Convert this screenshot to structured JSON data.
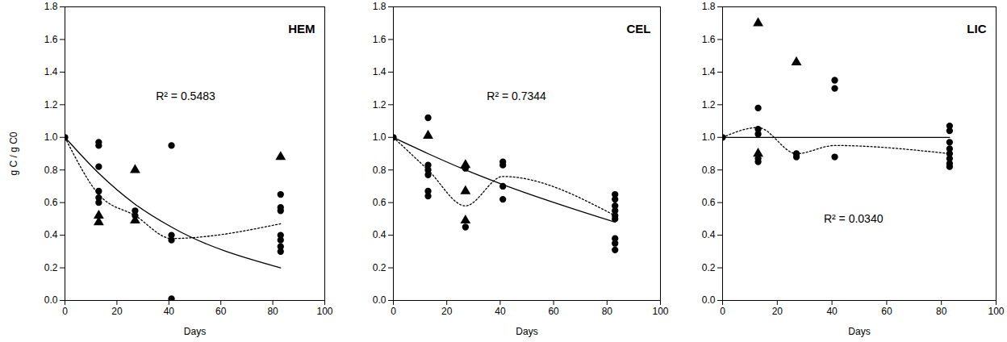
{
  "chart_data": [
    {
      "type": "scatter",
      "title": "HEM",
      "xlabel": "Days",
      "ylabel": "g C / g C0",
      "color": "#000000",
      "xlim": [
        0,
        100
      ],
      "ylim": [
        0,
        1.8
      ],
      "xticks": [
        0,
        20,
        40,
        60,
        80,
        100
      ],
      "yticks": [
        {
          "value": 0,
          "label": "0.0"
        },
        0.2,
        0.4,
        0.6,
        0.8,
        {
          "value": 1,
          "label": "1.0"
        },
        1.2,
        1.4,
        1.6,
        1.8
      ],
      "annotations": [
        {
          "text": "R² = 0.5483",
          "x": 35,
          "y": 1.25
        }
      ],
      "series": [
        {
          "type": "scatter",
          "marker": "circle",
          "x": [
            0,
            13,
            13,
            13,
            13,
            13,
            13,
            27,
            27,
            41,
            41,
            41,
            41,
            83,
            83,
            83,
            83,
            83,
            83,
            83
          ],
          "values": [
            1.0,
            0.97,
            0.95,
            0.82,
            0.67,
            0.63,
            0.6,
            0.55,
            0.52,
            0.95,
            0.4,
            0.37,
            0.01,
            0.65,
            0.57,
            0.55,
            0.4,
            0.37,
            0.33,
            0.3
          ]
        },
        {
          "type": "scatter",
          "marker": "triangle",
          "x": [
            13,
            13,
            27,
            27,
            83
          ],
          "values": [
            0.52,
            0.48,
            0.8,
            0.49,
            0.88
          ]
        },
        {
          "type": "line",
          "line_style": "solid",
          "x": [
            0,
            13,
            27,
            41,
            83
          ],
          "values": [
            1.0,
            0.78,
            0.59,
            0.45,
            0.2
          ]
        },
        {
          "type": "line",
          "line_style": "dotted",
          "x": [
            0,
            13,
            27,
            41,
            83
          ],
          "values": [
            1.0,
            0.65,
            0.52,
            0.38,
            0.47
          ]
        }
      ]
    },
    {
      "type": "scatter",
      "title": "CEL",
      "xlabel": "Days",
      "color": "#000000",
      "xlim": [
        0,
        100
      ],
      "ylim": [
        0,
        1.8
      ],
      "xticks": [
        0,
        20,
        40,
        60,
        80,
        100
      ],
      "yticks": [
        {
          "value": 0,
          "label": "0.0"
        },
        0.2,
        0.4,
        0.6,
        0.8,
        {
          "value": 1,
          "label": "1.0"
        },
        1.2,
        1.4,
        1.6,
        1.8
      ],
      "annotations": [
        {
          "text": "R² = 0.7344",
          "x": 35,
          "y": 1.25
        }
      ],
      "series": [
        {
          "type": "scatter",
          "marker": "circle",
          "x": [
            0,
            13,
            13,
            13,
            13,
            13,
            13,
            27,
            27,
            41,
            41,
            41,
            41,
            83,
            83,
            83,
            83,
            83,
            83,
            83,
            83,
            83
          ],
          "values": [
            1.0,
            1.12,
            0.83,
            0.8,
            0.77,
            0.67,
            0.64,
            0.81,
            0.45,
            0.85,
            0.83,
            0.7,
            0.62,
            0.65,
            0.62,
            0.58,
            0.55,
            0.52,
            0.5,
            0.38,
            0.35,
            0.31
          ]
        },
        {
          "type": "scatter",
          "marker": "triangle",
          "x": [
            13,
            27,
            27,
            27
          ],
          "values": [
            1.01,
            0.83,
            0.67,
            0.49
          ]
        },
        {
          "type": "line",
          "line_style": "solid",
          "x": [
            0,
            13,
            27,
            41,
            83
          ],
          "values": [
            1.0,
            0.9,
            0.8,
            0.71,
            0.48
          ]
        },
        {
          "type": "line",
          "line_style": "dotted",
          "x": [
            0,
            13,
            27,
            41,
            83
          ],
          "values": [
            1.0,
            0.8,
            0.58,
            0.76,
            0.52
          ]
        }
      ]
    },
    {
      "type": "scatter",
      "title": "LIC",
      "xlabel": "Days",
      "color": "#000000",
      "xlim": [
        0,
        100
      ],
      "ylim": [
        0,
        1.8
      ],
      "xticks": [
        0,
        20,
        40,
        60,
        80,
        100
      ],
      "yticks": [
        {
          "value": 0,
          "label": "0.0"
        },
        0.2,
        0.4,
        0.6,
        0.8,
        {
          "value": 1,
          "label": "1.0"
        },
        1.2,
        1.4,
        1.6,
        1.8
      ],
      "annotations": [
        {
          "text": "R² = 0.0340",
          "x": 37,
          "y": 0.5
        }
      ],
      "series": [
        {
          "type": "scatter",
          "marker": "circle",
          "x": [
            0,
            13,
            13,
            13,
            13,
            13,
            27,
            27,
            41,
            41,
            41,
            83,
            83,
            83,
            83,
            83,
            83,
            83,
            83
          ],
          "values": [
            1.0,
            1.18,
            1.05,
            1.02,
            0.87,
            0.85,
            0.9,
            0.88,
            1.35,
            1.3,
            0.88,
            1.07,
            1.04,
            0.97,
            0.93,
            0.9,
            0.87,
            0.84,
            0.82
          ]
        },
        {
          "type": "scatter",
          "marker": "triangle",
          "x": [
            13,
            13,
            27
          ],
          "values": [
            1.7,
            0.9,
            1.46
          ]
        },
        {
          "type": "line",
          "line_style": "solid",
          "x": [
            0,
            83
          ],
          "values": [
            1.0,
            1.0
          ]
        },
        {
          "type": "line",
          "line_style": "dotted",
          "x": [
            0,
            13,
            27,
            41,
            83
          ],
          "values": [
            1.0,
            1.06,
            0.9,
            0.95,
            0.9
          ]
        }
      ]
    }
  ]
}
